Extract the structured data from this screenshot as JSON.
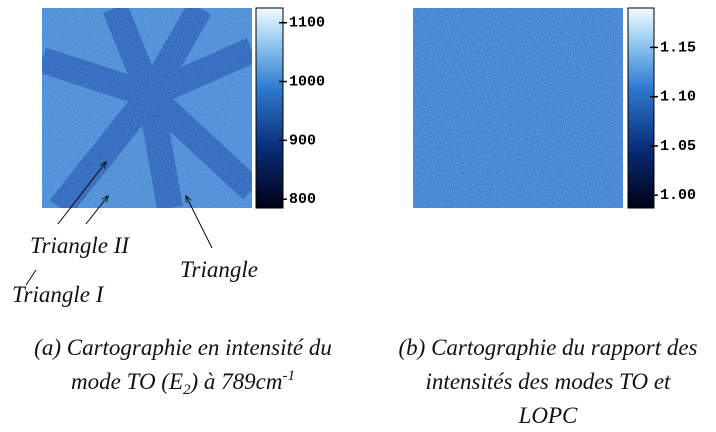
{
  "panels": [
    {
      "colorbar": {
        "lim": [
          785,
          1125
        ],
        "ticks": [
          800,
          900,
          1000,
          1100
        ]
      },
      "annotations": [
        "Triangle II",
        "Triangle I",
        "Triangle"
      ],
      "caption": {
        "line1": "(a) Cartographie en intensité du",
        "line2": [
          "mode TO (E",
          "2",
          ") à 789cm",
          "-1"
        ]
      }
    },
    {
      "colorbar": {
        "lim": [
          0.987,
          1.19
        ],
        "ticks": [
          {
            "value": 1,
            "label": "1.00"
          },
          1.05,
          {
            "value": 1.1,
            "label": "1.10"
          },
          1.15
        ]
      },
      "caption": {
        "line1": "(b) Cartographie du rapport des",
        "line2": [
          "intensités des modes TO et"
        ],
        "line3": "LOPC"
      }
    }
  ]
}
